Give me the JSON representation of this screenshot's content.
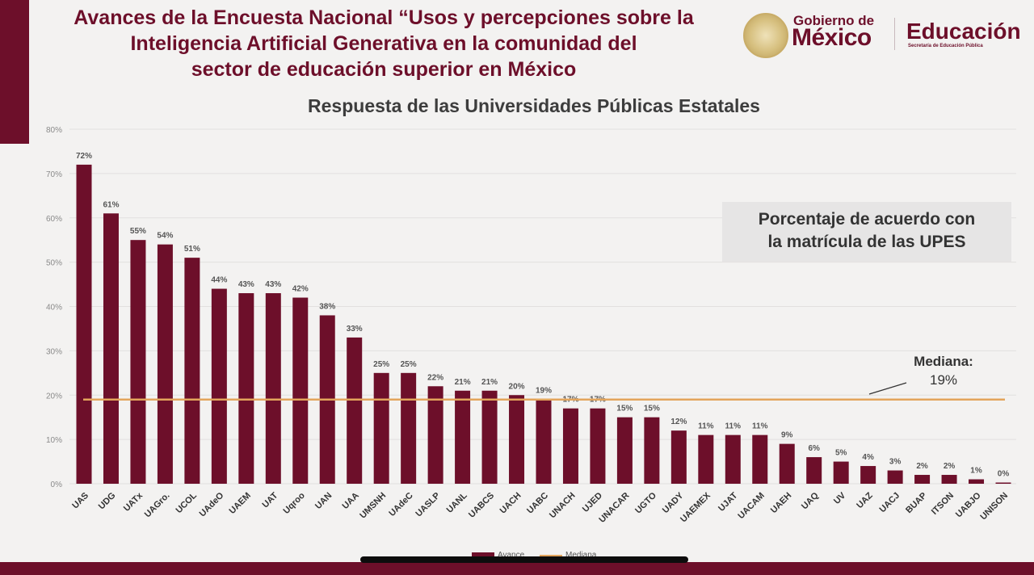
{
  "header": {
    "title_lines": [
      "Avances de la Encuesta Nacional “Usos y percepciones sobre la",
      "Inteligencia Artificial Generativa en la comunidad del",
      "sector de educación superior en México"
    ],
    "logo_gobierno_small": "Gobierno de",
    "logo_gobierno_big": "México",
    "logo_educacion": "Educación",
    "logo_educacion_sub": "Secretaría de Educación Pública"
  },
  "colors": {
    "bar": "#6d0f2a",
    "median_line": "#e3a55c",
    "brand": "#6d0f2a"
  },
  "note_lines": [
    "Porcentaje de acuerdo con",
    "la matrícula de las UPES"
  ],
  "median": {
    "label": "Mediana:",
    "value_label": "19%"
  },
  "legend": {
    "bar_label": "Avance",
    "line_label": "Mediana"
  },
  "chart_data": {
    "type": "bar",
    "title": "Respuesta de las Universidades Públicas Estatales",
    "xlabel": "",
    "ylabel": "",
    "ylim": [
      0,
      80
    ],
    "yticks": [
      0,
      10,
      20,
      30,
      40,
      50,
      60,
      70,
      80
    ],
    "ytick_labels": [
      "0%",
      "10%",
      "20%",
      "30%",
      "40%",
      "50%",
      "60%",
      "70%",
      "80%"
    ],
    "grid": true,
    "categories": [
      "UAS",
      "UDG",
      "UATx",
      "UAGro.",
      "UCOL",
      "UAdeO",
      "UAEM",
      "UAT",
      "Uqroo",
      "UAN",
      "UAA",
      "UMSNH",
      "UAdeC",
      "UASLP",
      "UANL",
      "UABCS",
      "UACH",
      "UABC",
      "UNACH",
      "UJED",
      "UNACAR",
      "UGTO",
      "UADY",
      "UAEMEX",
      "UJAT",
      "UACAM",
      "UAEH",
      "UAQ",
      "UV",
      "UAZ",
      "UACJ",
      "BUAP",
      "ITSON",
      "UABJO",
      "UNISON"
    ],
    "values": [
      72,
      61,
      55,
      54,
      51,
      44,
      43,
      43,
      42,
      38,
      33,
      25,
      25,
      22,
      21,
      21,
      20,
      19,
      17,
      17,
      15,
      15,
      12,
      11,
      11,
      11,
      9,
      6,
      5,
      4,
      3,
      2,
      2,
      1,
      0
    ],
    "data_labels": [
      "72%",
      "61%",
      "55%",
      "54%",
      "51%",
      "44%",
      "43%",
      "43%",
      "42%",
      "38%",
      "33%",
      "25%",
      "25%",
      "22%",
      "21%",
      "21%",
      "20%",
      "19%",
      "17%",
      "17%",
      "15%",
      "15%",
      "12%",
      "11%",
      "11%",
      "11%",
      "9%",
      "6%",
      "5%",
      "4%",
      "3%",
      "2%",
      "2%",
      "1%",
      "0%"
    ],
    "median": 19
  }
}
